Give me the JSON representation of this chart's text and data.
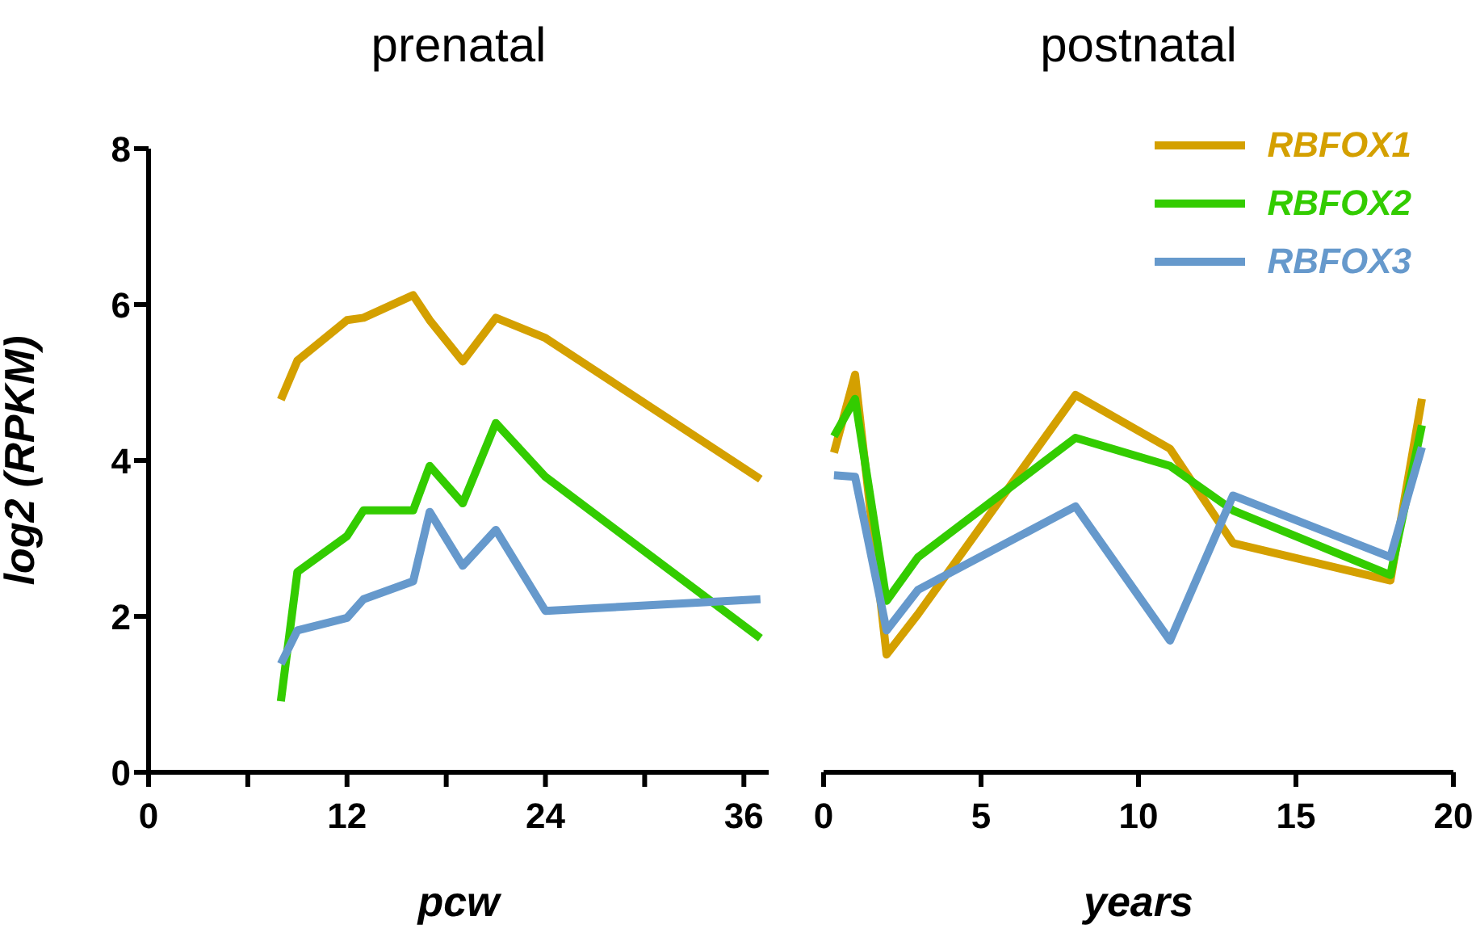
{
  "chart_data": [
    {
      "type": "line",
      "title": "prenatal",
      "xlabel": "pcw",
      "ylabel": "log2 (RPKM)",
      "xlim": [
        0,
        37.5
      ],
      "xticks": [
        0,
        {
          "value": 6,
          "label": null
        },
        12,
        {
          "value": 18,
          "label": null
        },
        24,
        {
          "value": 30,
          "label": null
        },
        36
      ],
      "ylim": [
        0,
        8
      ],
      "yticks": [
        0,
        2,
        4,
        6,
        8
      ],
      "grid": false,
      "legend": false,
      "marker": "none",
      "line_style": "solid",
      "series": [
        {
          "color": "#d4a000",
          "x": [
            8,
            9,
            12,
            13,
            16,
            17,
            19,
            21,
            24,
            37
          ],
          "values": [
            4.78,
            5.28,
            5.8,
            5.83,
            6.12,
            5.8,
            5.27,
            5.83,
            5.57,
            3.76
          ]
        },
        {
          "color": "#33cc00",
          "x": [
            8,
            9,
            12,
            13,
            16,
            17,
            19,
            21,
            24,
            37
          ],
          "values": [
            0.91,
            2.57,
            3.03,
            3.36,
            3.36,
            3.93,
            3.45,
            4.48,
            3.79,
            1.72
          ]
        },
        {
          "color": "#6699cc",
          "x": [
            8,
            9,
            12,
            13,
            16,
            17,
            19,
            21,
            24,
            37
          ],
          "values": [
            1.39,
            1.82,
            1.98,
            2.22,
            2.45,
            3.34,
            2.65,
            3.11,
            2.07,
            2.22
          ]
        }
      ]
    },
    {
      "type": "line",
      "title": "postnatal",
      "xlabel": "years",
      "xlim": [
        0,
        20
      ],
      "xticks": [
        0,
        5,
        10,
        15,
        20
      ],
      "ylim": [
        0,
        8
      ],
      "tick_labels": "x",
      "grid": false,
      "legend": "top right",
      "marker": "none",
      "line_style": "solid",
      "series": [
        {
          "name": "RBFOX1",
          "color": "#d4a000",
          "x": [
            0.33,
            1,
            2,
            3,
            8,
            11,
            13,
            18,
            19
          ],
          "values": [
            4.1,
            5.1,
            1.51,
            2.03,
            4.84,
            4.15,
            2.94,
            2.46,
            4.79
          ]
        },
        {
          "name": "RBFOX2",
          "color": "#33cc00",
          "x": [
            0.33,
            1,
            2,
            3,
            8,
            11,
            13,
            18,
            19
          ],
          "values": [
            4.31,
            4.79,
            2.2,
            2.76,
            4.29,
            3.93,
            3.36,
            2.53,
            4.45
          ]
        },
        {
          "name": "RBFOX3",
          "color": "#6699cc",
          "x": [
            0.33,
            1,
            2,
            3,
            8,
            11,
            13,
            18,
            19
          ],
          "values": [
            3.81,
            3.79,
            1.82,
            2.34,
            3.41,
            1.69,
            3.55,
            2.76,
            4.17
          ]
        }
      ]
    }
  ]
}
